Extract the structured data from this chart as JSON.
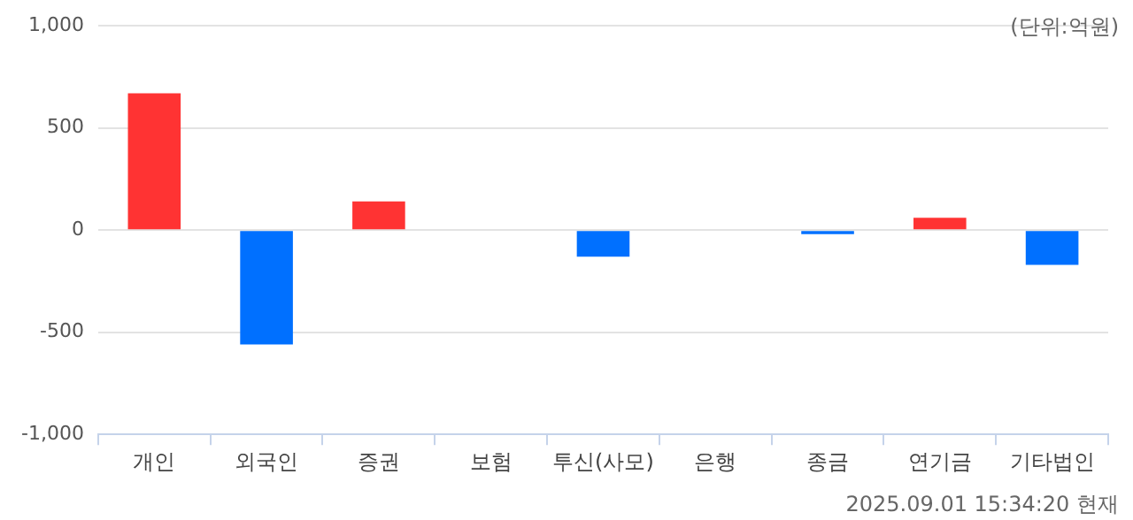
{
  "chart_data": {
    "type": "bar",
    "categories": [
      "개인",
      "외국인",
      "증권",
      "보험",
      "투신(사모)",
      "은행",
      "종금",
      "연기금",
      "기타법인"
    ],
    "values": [
      670,
      -560,
      140,
      0,
      -130,
      0,
      -20,
      60,
      -170
    ],
    "colors": [
      "#ff3333",
      "#0070ff",
      "#ff3333",
      "#ff3333",
      "#0070ff",
      "#ff3333",
      "#0070ff",
      "#ff3333",
      "#0070ff"
    ],
    "ylim": [
      -1000,
      1000
    ],
    "yticks": [
      {
        "value": -1000,
        "label": "-1,000"
      },
      -500,
      0,
      500,
      {
        "value": 1000,
        "label": "1,000"
      }
    ],
    "grid": "y",
    "legend": false,
    "annotations": [
      "(단위:억원)",
      "2025.09.01 15:34:20 현재"
    ]
  }
}
